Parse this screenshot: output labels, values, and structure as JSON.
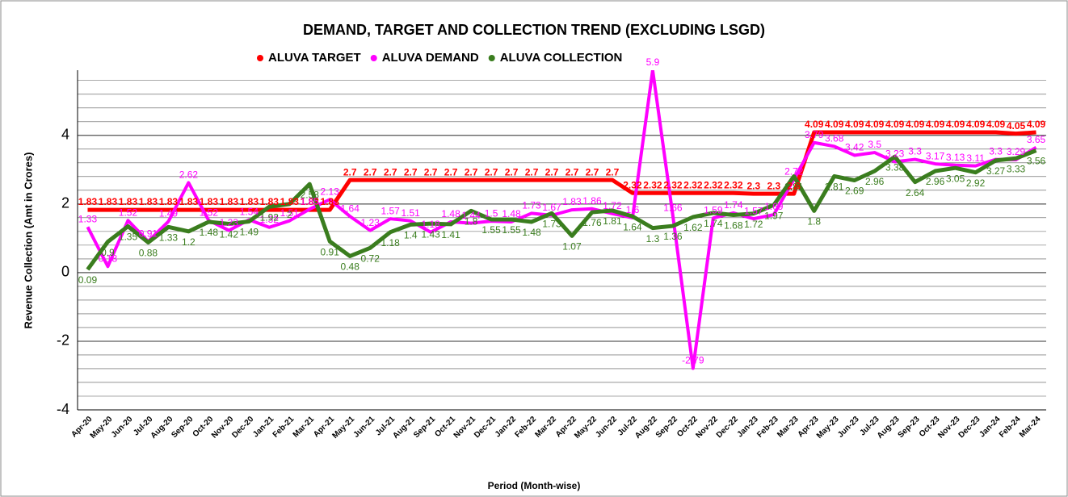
{
  "chart_data": {
    "type": "line",
    "title": "DEMAND, TARGET AND COLLECTION TREND (EXCLUDING LSGD)",
    "x_label": "Period (Month-wise)",
    "y_label": "Revenue Collection (Amt in Crores)",
    "categories": [
      "Apr-20",
      "May-20",
      "Jun-20",
      "Jul-20",
      "Aug-20",
      "Sep-20",
      "Oct-20",
      "Nov-20",
      "Dec-20",
      "Jan-21",
      "Feb-21",
      "Mar-21",
      "Apr-21",
      "May-21",
      "Jun-21",
      "Jul-21",
      "Aug-21",
      "Sep-21",
      "Oct-21",
      "Nov-21",
      "Dec-21",
      "Jan-22",
      "Feb-22",
      "Mar-22",
      "Apr-22",
      "May-22",
      "Jun-22",
      "Jul-22",
      "Aug-22",
      "Sep-22",
      "Oct-22",
      "Nov-22",
      "Dec-22",
      "Jan-23",
      "Feb-23",
      "Mar-23",
      "Apr-23",
      "May-23",
      "Jun-23",
      "Jul-23",
      "Aug-23",
      "Sep-23",
      "Oct-23",
      "Nov-23",
      "Dec-23",
      "Jan-24",
      "Feb-24",
      "Mar-24"
    ],
    "series": [
      {
        "name": "ALUVA TARGET",
        "color": "#ff0000",
        "values": [
          1.83,
          1.83,
          1.83,
          1.83,
          1.83,
          1.83,
          1.83,
          1.83,
          1.83,
          1.83,
          1.83,
          1.83,
          1.83,
          2.7,
          2.7,
          2.7,
          2.7,
          2.7,
          2.7,
          2.7,
          2.7,
          2.7,
          2.7,
          2.7,
          2.7,
          2.7,
          2.7,
          2.32,
          2.32,
          2.32,
          2.32,
          2.32,
          2.32,
          2.3,
          2.3,
          2.3,
          4.09,
          4.09,
          4.09,
          4.09,
          4.09,
          4.09,
          4.09,
          4.09,
          4.09,
          4.09,
          4.05,
          4.09
        ]
      },
      {
        "name": "ALUVA DEMAND",
        "color": "#ff00ff",
        "values": [
          1.33,
          0.18,
          1.52,
          0.91,
          1.49,
          2.62,
          1.52,
          1.23,
          1.54,
          1.32,
          1.51,
          1.85,
          2.13,
          1.64,
          1.23,
          1.57,
          1.51,
          1.18,
          1.48,
          1.44,
          1.5,
          1.48,
          1.73,
          1.67,
          1.83,
          1.86,
          1.72,
          1.6,
          5.9,
          1.66,
          -2.79,
          1.59,
          1.74,
          1.57,
          1.69,
          2.72,
          3.79,
          3.68,
          3.42,
          3.5,
          3.23,
          3.3,
          3.17,
          3.13,
          3.11,
          3.3,
          3.29,
          3.65
        ]
      },
      {
        "name": "ALUVA COLLECTION",
        "color": "#3a7d1e",
        "values": [
          0.09,
          0.9,
          1.35,
          0.88,
          1.33,
          1.2,
          1.48,
          1.42,
          1.49,
          1.92,
          2,
          2.58,
          0.91,
          0.48,
          0.72,
          1.18,
          1.4,
          1.43,
          1.41,
          1.8,
          1.55,
          1.55,
          1.48,
          1.73,
          1.07,
          1.76,
          1.81,
          1.64,
          1.3,
          1.36,
          1.62,
          1.74,
          1.68,
          1.72,
          1.97,
          2.81,
          1.8,
          2.81,
          2.69,
          2.96,
          3.38,
          2.64,
          2.96,
          3.05,
          2.92,
          3.27,
          3.33,
          3.56
        ]
      }
    ],
    "ylim": [
      -4,
      5.9
    ],
    "yticks": [
      -4,
      -2,
      0,
      2,
      4
    ],
    "grid": true,
    "legend": "top"
  }
}
